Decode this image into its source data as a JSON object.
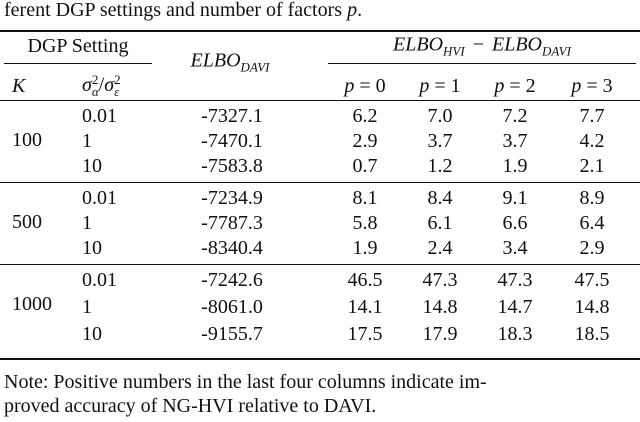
{
  "caption": {
    "text": "ferent DGP settings and number of factors ",
    "var": "p",
    "end": "."
  },
  "table": {
    "header": {
      "dgp_setting": "DGP Setting",
      "elbo_davi": {
        "base": "ELBO",
        "sub": "DAVI"
      },
      "difference": {
        "left": {
          "base": "ELBO",
          "sub": "HVI"
        },
        "op": "−",
        "right": {
          "base": "ELBO",
          "sub": "DAVI"
        }
      },
      "k": "K",
      "ratio": {
        "num": {
          "base": "σ",
          "sup": "2",
          "sub": "α"
        },
        "op": "/",
        "den": {
          "base": "σ",
          "sup": "2",
          "sub": "ε"
        }
      },
      "p_cols": [
        {
          "var": "p",
          "op": "=",
          "val": "0"
        },
        {
          "var": "p",
          "op": "=",
          "val": "1"
        },
        {
          "var": "p",
          "op": "=",
          "val": "2"
        },
        {
          "var": "p",
          "op": "=",
          "val": "3"
        }
      ]
    },
    "groups": [
      {
        "K": "100",
        "rows": [
          {
            "setting": "0.01",
            "elbo": "-7327.1",
            "diffs": [
              "6.2",
              "7.0",
              "7.2",
              "7.7"
            ]
          },
          {
            "setting": "1",
            "elbo": "-7470.1",
            "diffs": [
              "2.9",
              "3.7",
              "3.7",
              "4.2"
            ]
          },
          {
            "setting": "10",
            "elbo": "-7583.8",
            "diffs": [
              "0.7",
              "1.2",
              "1.9",
              "2.1"
            ]
          }
        ]
      },
      {
        "K": "500",
        "rows": [
          {
            "setting": "0.01",
            "elbo": "-7234.9",
            "diffs": [
              "8.1",
              "8.4",
              "9.1",
              "8.9"
            ]
          },
          {
            "setting": "1",
            "elbo": "-7787.3",
            "diffs": [
              "5.8",
              "6.1",
              "6.6",
              "6.4"
            ]
          },
          {
            "setting": "10",
            "elbo": "-8340.4",
            "diffs": [
              "1.9",
              "2.4",
              "3.4",
              "2.9"
            ]
          }
        ]
      },
      {
        "K": "1000",
        "rows": [
          {
            "setting": "0.01",
            "elbo": "-7242.6",
            "diffs": [
              "46.5",
              "47.3",
              "47.3",
              "47.5"
            ]
          },
          {
            "setting": "1",
            "elbo": "-8061.0",
            "diffs": [
              "14.1",
              "14.8",
              "14.7",
              "14.8"
            ]
          },
          {
            "setting": "10",
            "elbo": "-9155.7",
            "diffs": [
              "17.5",
              "17.9",
              "18.3",
              "18.5"
            ]
          }
        ]
      }
    ]
  },
  "note": [
    "Note:  Positive numbers in the last four columns indicate im-",
    "proved accuracy of NG-HVI relative to DAVI."
  ]
}
